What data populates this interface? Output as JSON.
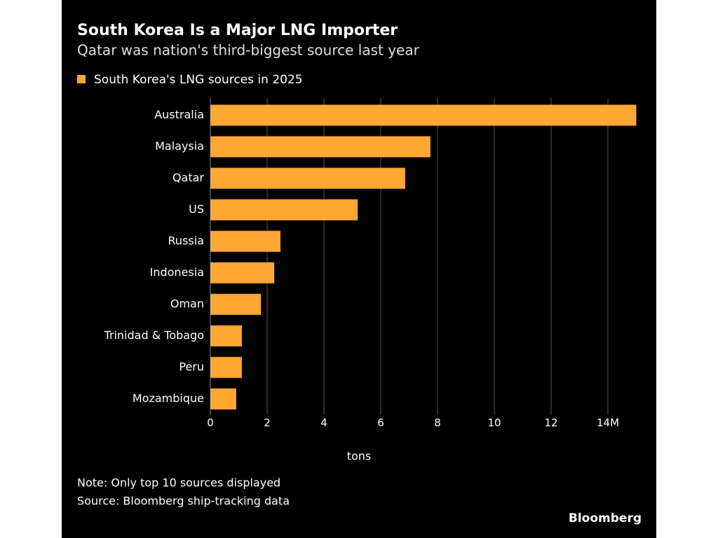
{
  "chart_data": {
    "type": "bar",
    "orientation": "horizontal",
    "title": "South Korea Is a Major LNG Importer",
    "subtitle": "Qatar was nation's third-biggest source last year",
    "categories": [
      "Australia",
      "Malaysia",
      "Qatar",
      "US",
      "Russia",
      "Indonesia",
      "Oman",
      "Trinidad & Tobago",
      "Peru",
      "Mozambique"
    ],
    "series": [
      {
        "name": "South Korea's LNG sources in 2025",
        "color": "#ffa733",
        "values": [
          15.0,
          7.75,
          6.86,
          5.19,
          2.47,
          2.25,
          1.78,
          1.11,
          1.11,
          0.91
        ]
      }
    ],
    "xlim": [
      0,
      15
    ],
    "xticks": [
      0,
      2,
      4,
      6,
      8,
      10,
      12,
      {
        "value": 14,
        "label": "14M"
      }
    ],
    "x_label": "tons",
    "grid": true,
    "note": "Note: Only top 10 sources displayed",
    "source": "Source: Bloomberg ship-tracking data",
    "brand": "Bloomberg"
  }
}
